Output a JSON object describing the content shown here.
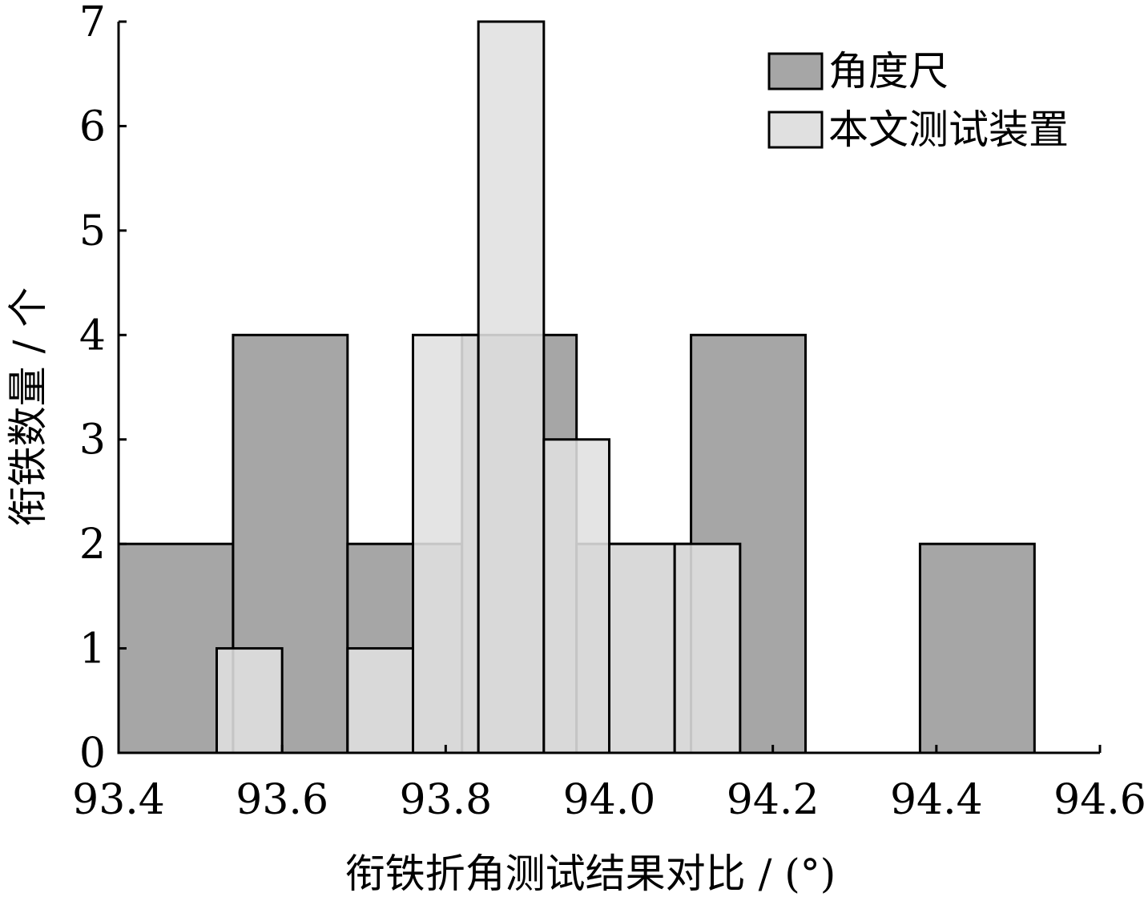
{
  "chart_data": {
    "type": "bar",
    "xlabel": "衔铁折角测试结果对比 / (°)",
    "ylabel": "衔铁数量 / 个",
    "xlim": [
      93.4,
      94.6
    ],
    "ylim": [
      0,
      7
    ],
    "xticks": [
      93.4,
      93.6,
      93.8,
      94.0,
      94.2,
      94.4,
      94.6
    ],
    "xtick_labels": [
      "93.4",
      "93.6",
      "93.8",
      "94.0",
      "94.2",
      "94.4",
      "94.6"
    ],
    "yticks": [
      0,
      1,
      2,
      3,
      4,
      5,
      6,
      7
    ],
    "ytick_labels": [
      "0",
      "1",
      "2",
      "3",
      "4",
      "5",
      "6",
      "7"
    ],
    "grid": false,
    "legend_position": "top-right",
    "series": [
      {
        "name": "角度尺",
        "color": "#a6a6a6",
        "bins": [
          {
            "x0": 93.4,
            "x1": 93.54,
            "count": 2
          },
          {
            "x0": 93.54,
            "x1": 93.68,
            "count": 4
          },
          {
            "x0": 93.68,
            "x1": 93.82,
            "count": 2
          },
          {
            "x0": 93.82,
            "x1": 93.96,
            "count": 4
          },
          {
            "x0": 93.96,
            "x1": 94.1,
            "count": 2
          },
          {
            "x0": 94.1,
            "x1": 94.24,
            "count": 4
          },
          {
            "x0": 94.24,
            "x1": 94.38,
            "count": 0
          },
          {
            "x0": 94.38,
            "x1": 94.52,
            "count": 2
          }
        ]
      },
      {
        "name": "本文测试装置",
        "color": "#e0e0e0",
        "bins": [
          {
            "x0": 93.52,
            "x1": 93.6,
            "count": 1
          },
          {
            "x0": 93.6,
            "x1": 93.68,
            "count": 0
          },
          {
            "x0": 93.68,
            "x1": 93.76,
            "count": 1
          },
          {
            "x0": 93.76,
            "x1": 93.84,
            "count": 4
          },
          {
            "x0": 93.84,
            "x1": 93.92,
            "count": 7
          },
          {
            "x0": 93.92,
            "x1": 94.0,
            "count": 3
          },
          {
            "x0": 94.0,
            "x1": 94.08,
            "count": 2
          },
          {
            "x0": 94.08,
            "x1": 94.16,
            "count": 2
          }
        ]
      }
    ]
  }
}
